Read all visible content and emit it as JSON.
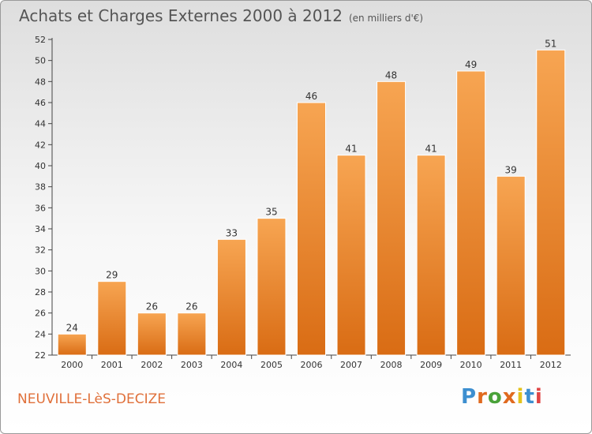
{
  "header": {
    "title": "Achats et Charges Externes 2000 à 2012",
    "unit": "(en milliers d'€)"
  },
  "footer": {
    "town": "NEUVILLE-LèS-DECIZE",
    "logo_text": "Proxiti"
  },
  "colors": {
    "bar_light": "#f7a552",
    "bar_dark": "#d96c14",
    "town_text": "#e0703a",
    "logo": [
      "#3d8fd0",
      "#e06a1f",
      "#4aa23a",
      "#e06a1f",
      "#e4c21c",
      "#3d8fd0",
      "#e04545"
    ]
  },
  "chart_data": {
    "type": "bar",
    "title": "Achats et Charges Externes 2000 à 2012",
    "xlabel": "",
    "ylabel": "",
    "categories": [
      "2000",
      "2001",
      "2002",
      "2003",
      "2004",
      "2005",
      "2006",
      "2007",
      "2008",
      "2009",
      "2010",
      "2011",
      "2012"
    ],
    "values": [
      24,
      29,
      26,
      26,
      33,
      35,
      46,
      41,
      48,
      41,
      49,
      39,
      51
    ],
    "ylim": [
      22,
      52
    ],
    "yticks": [
      22,
      24,
      26,
      28,
      30,
      32,
      34,
      36,
      38,
      40,
      42,
      44,
      46,
      48,
      50,
      52
    ],
    "grid": false,
    "legend": "none"
  }
}
